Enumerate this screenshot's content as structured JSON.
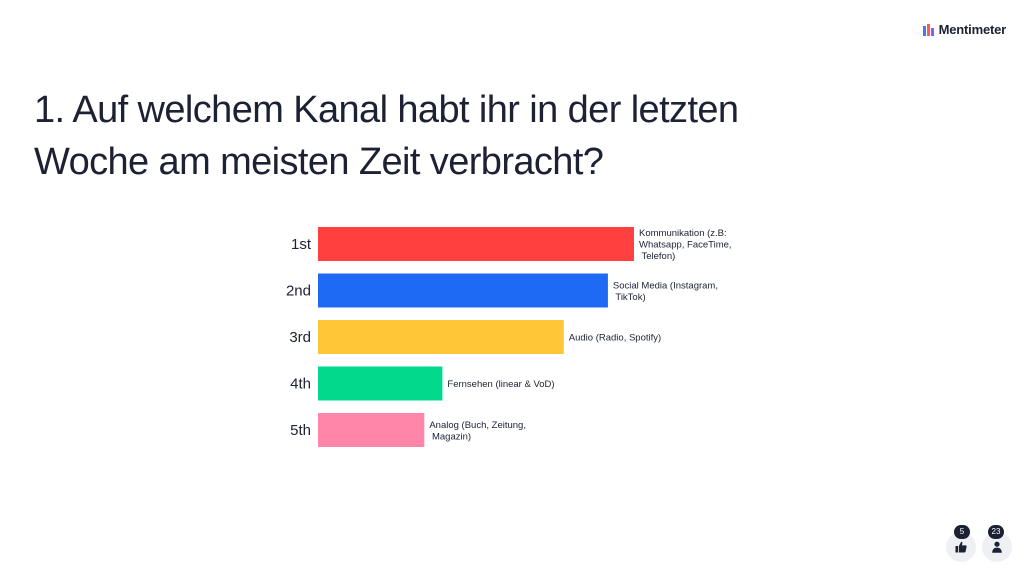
{
  "brand": {
    "name": "Mentimeter"
  },
  "question": {
    "line1": "1. Auf welchem Kanal habt ihr in der letzten",
    "line2": "Woche am meisten Zeit verbracht?"
  },
  "chart_data": {
    "type": "bar",
    "orientation": "horizontal",
    "title": "1. Auf welchem Kanal habt ihr in der letzten Woche am meisten Zeit verbracht?",
    "categories": [
      "1st",
      "2nd",
      "3rd",
      "4th",
      "5th"
    ],
    "values": [
      315,
      289,
      245,
      124,
      106
    ],
    "value_note": "relative score (no scale printed)",
    "labels": [
      [
        "Kommunikation (z.B:",
        "Whatsapp, FaceTime,",
        " Telefon)"
      ],
      [
        "Social Media (Instagram,",
        " TikTok)"
      ],
      [
        "Audio (Radio, Spotify)"
      ],
      [
        "Fernsehen (linear & VoD)"
      ],
      [
        "Analog (Buch, Zeitung,",
        " Magazin)"
      ]
    ],
    "colors": [
      "#ff403f",
      "#1e6af5",
      "#ffc637",
      "#02d98c",
      "#ff85a9"
    ],
    "xlim": [
      0,
      315
    ],
    "grid": false,
    "legend": "none"
  },
  "footer": {
    "likes": {
      "count": "5",
      "icon": "thumbs-up-icon"
    },
    "participants": {
      "count": "23",
      "icon": "person-icon"
    }
  }
}
